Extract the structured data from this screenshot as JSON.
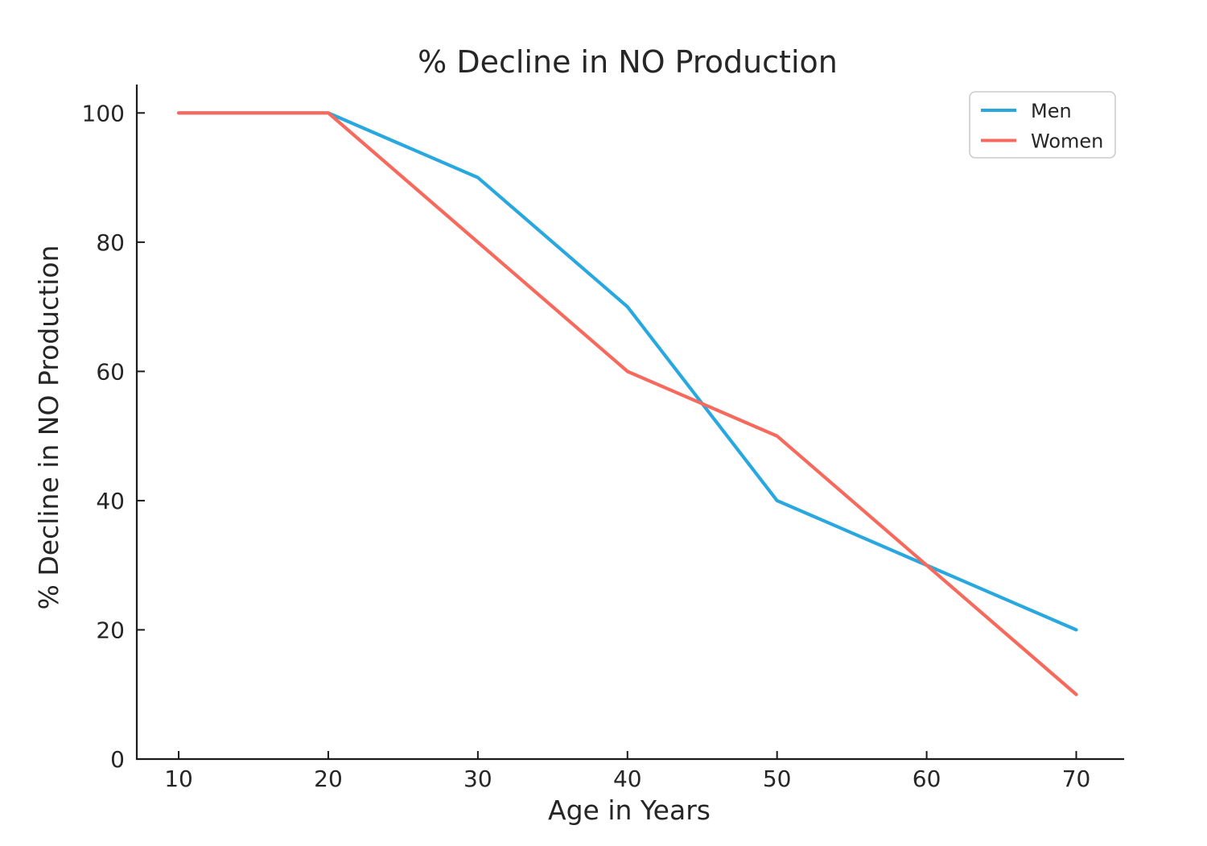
{
  "chart_data": {
    "type": "line",
    "title": "% Decline in NO Production",
    "xlabel": "Age in Years",
    "ylabel": "% Decline in NO Production",
    "x": [
      10,
      20,
      30,
      40,
      50,
      60,
      70
    ],
    "series": [
      {
        "name": "Men",
        "color": "#29A8E0",
        "values": [
          100,
          100,
          90,
          70,
          40,
          30,
          20
        ]
      },
      {
        "name": "Women",
        "color": "#F7695C",
        "values": [
          100,
          100,
          80,
          60,
          50,
          30,
          10
        ]
      }
    ],
    "xticks": [
      10,
      20,
      30,
      40,
      50,
      60,
      70
    ],
    "yticks": [
      0,
      20,
      40,
      60,
      80,
      100
    ],
    "xlim": [
      7.2,
      73.2
    ],
    "ylim": [
      0,
      104.4
    ],
    "grid": false,
    "legend": {
      "position": "upper right",
      "entries": [
        "Men",
        "Women"
      ]
    },
    "colors": {
      "axis": "#1a1a1a",
      "text": "#262626",
      "legend_border": "#cccccc",
      "background": "#ffffff"
    }
  }
}
